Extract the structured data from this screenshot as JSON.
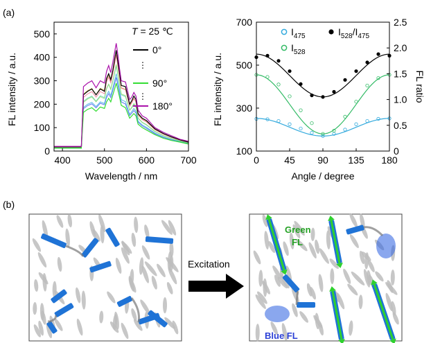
{
  "panel_labels": {
    "a": "(a)",
    "b": "(b)"
  },
  "chart_data": [
    {
      "type": "line",
      "title": "",
      "xlabel": "Wavelength / nm",
      "ylabel": "FL intensity / a.u.",
      "xlim": [
        380,
        700
      ],
      "ylim": [
        0,
        550
      ],
      "xticks": [
        400,
        500,
        600,
        700
      ],
      "yticks": [
        0,
        100,
        200,
        300,
        400,
        500
      ],
      "annotation": {
        "var": "T",
        "rest": " = 25 ℃"
      },
      "legend_position": "top-right",
      "legend_dots": "⋮",
      "series": [
        {
          "name": "0°",
          "color": "#000000",
          "x": [
            380,
            445,
            450,
            460,
            470,
            480,
            490,
            500,
            505,
            510,
            515,
            520,
            525,
            528,
            532,
            536,
            540,
            550,
            560,
            565,
            570,
            575,
            580,
            590,
            600,
            620,
            640,
            660,
            680,
            700
          ],
          "y": [
            18,
            18,
            240,
            255,
            265,
            240,
            265,
            255,
            310,
            330,
            305,
            345,
            400,
            430,
            380,
            330,
            280,
            275,
            200,
            215,
            235,
            220,
            160,
            140,
            130,
            95,
            75,
            60,
            48,
            38
          ]
        },
        {
          "name": "90°",
          "color": "#33dd33",
          "x": [
            380,
            445,
            450,
            460,
            470,
            480,
            490,
            500,
            505,
            510,
            515,
            520,
            525,
            528,
            532,
            536,
            540,
            550,
            560,
            565,
            570,
            575,
            580,
            590,
            600,
            620,
            640,
            660,
            680,
            700
          ],
          "y": [
            12,
            12,
            165,
            178,
            185,
            170,
            188,
            182,
            210,
            225,
            210,
            240,
            270,
            290,
            260,
            230,
            195,
            185,
            140,
            150,
            160,
            150,
            115,
            100,
            90,
            70,
            55,
            45,
            38,
            30
          ]
        },
        {
          "name": "180°",
          "color": "#aa11aa",
          "x": [
            380,
            445,
            450,
            460,
            470,
            480,
            490,
            500,
            505,
            510,
            515,
            520,
            525,
            528,
            532,
            536,
            540,
            550,
            560,
            565,
            570,
            575,
            580,
            590,
            600,
            620,
            640,
            660,
            680,
            700
          ],
          "y": [
            20,
            20,
            275,
            290,
            300,
            270,
            300,
            290,
            340,
            365,
            335,
            380,
            430,
            460,
            410,
            350,
            300,
            295,
            220,
            230,
            250,
            235,
            175,
            150,
            140,
            100,
            80,
            65,
            50,
            42
          ]
        }
      ]
    },
    {
      "type": "scatter",
      "title": "",
      "xlabel": "Angle / degree",
      "ylabel": "FL intensity / a.u.",
      "y2label": "FL ratio",
      "xlim": [
        0,
        180
      ],
      "ylim": [
        100,
        700
      ],
      "y2lim": [
        0,
        2.5
      ],
      "xticks": [
        0,
        45,
        90,
        135,
        180
      ],
      "yticks": [
        100,
        300,
        500,
        700
      ],
      "y2ticks": [
        0,
        0.5,
        1.0,
        1.5,
        2.0,
        2.5
      ],
      "legend_position": "top",
      "series": [
        {
          "name": "I475",
          "base": "I",
          "sub": "475",
          "marker": "open-circle",
          "color": "#33aadd",
          "axis": "left",
          "x": [
            0,
            15,
            30,
            45,
            60,
            75,
            90,
            105,
            120,
            135,
            150,
            165,
            180
          ],
          "y": [
            250,
            248,
            240,
            225,
            205,
            185,
            170,
            180,
            200,
            225,
            240,
            250,
            252
          ]
        },
        {
          "name": "I528",
          "base": "I",
          "sub": "528",
          "marker": "open-circle",
          "color": "#33bb66",
          "axis": "left",
          "x": [
            0,
            15,
            30,
            45,
            60,
            75,
            90,
            105,
            120,
            135,
            150,
            165,
            180
          ],
          "y": [
            455,
            445,
            410,
            355,
            290,
            230,
            180,
            195,
            260,
            330,
            405,
            440,
            455
          ]
        },
        {
          "name": "I528/I475",
          "base": "I",
          "sub": "528",
          "mid": "/I",
          "sub2": "475",
          "marker": "filled-circle",
          "color": "#000000",
          "axis": "right",
          "x": [
            0,
            15,
            30,
            45,
            60,
            75,
            90,
            105,
            120,
            135,
            150,
            165,
            180
          ],
          "y": [
            1.82,
            1.85,
            1.75,
            1.55,
            1.3,
            1.08,
            1.05,
            1.15,
            1.38,
            1.55,
            1.72,
            1.88,
            1.85
          ]
        }
      ]
    }
  ],
  "panel_b": {
    "arrow_label": "Excitation",
    "green_label_line1": "Green",
    "green_label_line2": "FL",
    "blue_label": "Blue FL",
    "colors": {
      "rod": "#bdbdbd",
      "rod_dark": "#8a8a8a",
      "dye": "#1f73d6",
      "green": "#2ed12e",
      "green_text": "#22a022",
      "blue_text": "#2a3fd6"
    }
  }
}
